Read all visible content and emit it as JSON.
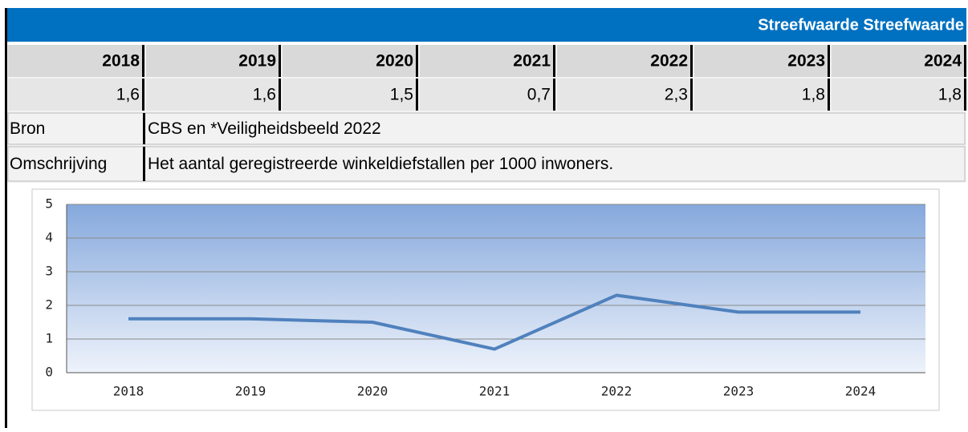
{
  "header": {
    "title": "Streefwaarde Streefwaarde"
  },
  "table": {
    "years": [
      "2018",
      "2019",
      "2020",
      "2021",
      "2022",
      "2023",
      "2024"
    ],
    "values": [
      "1,6",
      "1,6",
      "1,5",
      "0,7",
      "2,3",
      "1,8",
      "1,8"
    ],
    "rows": [
      [
        "Bron",
        "CBS en *Veiligheidsbeeld 2022"
      ],
      [
        "Omschrijving",
        "Het aantal geregistreerde winkeldiefstallen per 1000 inwoners."
      ]
    ]
  },
  "chart_data": {
    "type": "line",
    "categories": [
      "2018",
      "2019",
      "2020",
      "2021",
      "2022",
      "2023",
      "2024"
    ],
    "values": [
      1.6,
      1.6,
      1.5,
      0.7,
      2.3,
      1.8,
      1.8
    ],
    "color": "#4f81bd",
    "ylim": [
      0,
      5
    ],
    "yticks": [
      0,
      1,
      2,
      3,
      4,
      5
    ],
    "grid": true
  }
}
